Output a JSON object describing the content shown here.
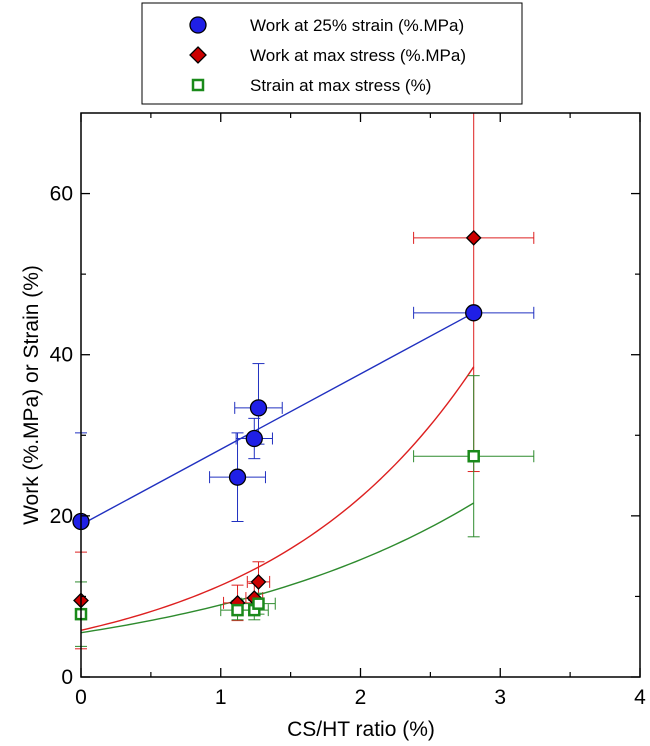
{
  "chart_data": {
    "type": "scatter",
    "xlabel": "CS/HT ratio (%)",
    "ylabel": "Work (%.MPa) or Strain (%)",
    "xlim": [
      0,
      4
    ],
    "ylim": [
      0,
      70
    ],
    "x_ticks": [
      0,
      1,
      2,
      3,
      4
    ],
    "y_ticks": [
      0,
      20,
      40,
      60
    ],
    "x_tick_labels": [
      "0",
      "1",
      "2",
      "3",
      "4"
    ],
    "y_tick_labels": [
      "0",
      "20",
      "40",
      "60"
    ],
    "grid": false,
    "legend_position": "top-center",
    "series": [
      {
        "name": "Work at 25% strain (%.MPa)",
        "marker": "circle",
        "color": "#0000cc",
        "fill": "#1f1fe6",
        "fit_color": "#2030c0",
        "x": [
          0,
          1.12,
          1.24,
          1.27,
          2.81
        ],
        "y": [
          19.3,
          24.8,
          29.6,
          33.4,
          45.2
        ],
        "x_err": [
          0,
          0.2,
          0.13,
          0.17,
          0.43
        ],
        "y_err_low": [
          0,
          5.5,
          2.5,
          4.5,
          0
        ],
        "y_err_high": [
          11,
          5.5,
          2.5,
          5.5,
          0
        ],
        "fit": {
          "type": "linear",
          "x": [
            0,
            2.81
          ],
          "y": [
            18.9,
            45.2
          ]
        }
      },
      {
        "name": "Work at max stress (%.MPa)",
        "marker": "diamond",
        "color": "#000000",
        "fill": "#cc0000",
        "fit_color": "#dd2020",
        "x": [
          0,
          1.12,
          1.24,
          1.27,
          2.81
        ],
        "y": [
          9.5,
          9.2,
          9.8,
          11.8,
          54.5
        ],
        "x_err": [
          0,
          0.1,
          0.06,
          0.08,
          0.43
        ],
        "y_err_low": [
          6,
          2.2,
          1.8,
          2.5,
          29
        ],
        "y_err_high": [
          6,
          2.2,
          1.8,
          2.5,
          16
        ],
        "fit": {
          "type": "exponential",
          "x_start": 0,
          "x_end": 2.81,
          "y_start": 5.8,
          "y_end": 38.5
        }
      },
      {
        "name": "Strain at max stress (%)",
        "marker": "square-open",
        "color": "#1a8a1a",
        "fill": "#ffffff",
        "fit_color": "#2e8b2e",
        "x": [
          0,
          1.12,
          1.24,
          1.27,
          2.81
        ],
        "y": [
          7.8,
          8.3,
          8.3,
          9.1,
          27.4
        ],
        "x_err": [
          0,
          0.12,
          0.1,
          0.12,
          0.43
        ],
        "y_err_low": [
          4,
          1.2,
          1.2,
          1.3,
          10
        ],
        "y_err_high": [
          4,
          1.2,
          1.2,
          1.3,
          10
        ],
        "fit": {
          "type": "exponential",
          "x_start": 0,
          "x_end": 2.81,
          "y_start": 5.5,
          "y_end": 21.6
        }
      }
    ]
  }
}
